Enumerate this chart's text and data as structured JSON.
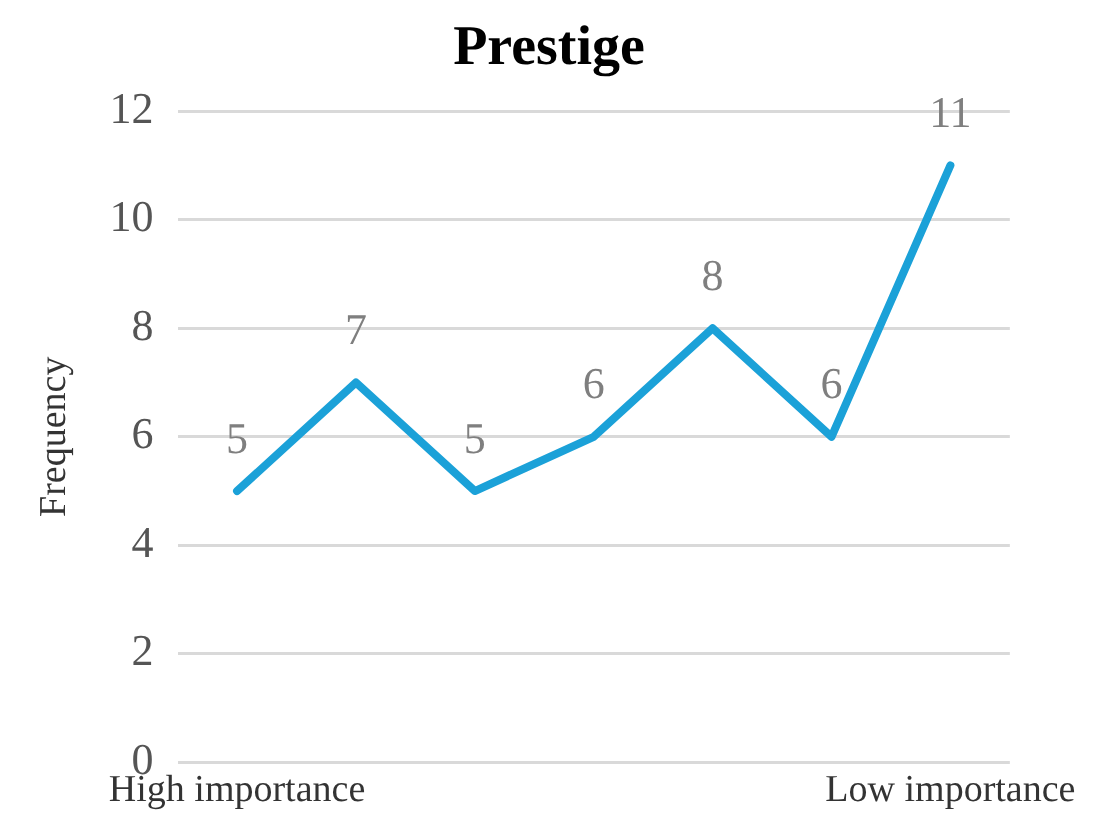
{
  "chart_data": {
    "type": "line",
    "title": "Prestige",
    "ylabel": "Frequency",
    "categories": [
      "High importance",
      null,
      null,
      null,
      null,
      null,
      "Low importance"
    ],
    "series": [
      {
        "color": "#1ba1d8",
        "values": [
          5,
          7,
          5,
          6,
          8,
          6,
          11
        ]
      }
    ],
    "ylim": [
      0,
      12
    ],
    "yticks": [
      0,
      2,
      4,
      6,
      8,
      10,
      12
    ],
    "grid": "y",
    "legend": false,
    "marker": "none",
    "line_style": "solid",
    "data_labels": true
  }
}
